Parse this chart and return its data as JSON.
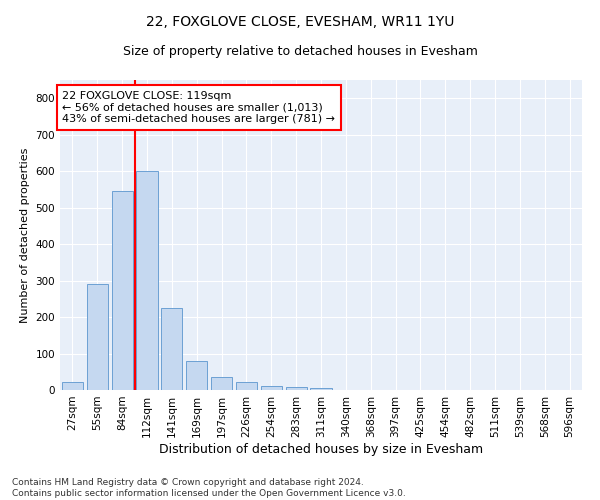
{
  "title1": "22, FOXGLOVE CLOSE, EVESHAM, WR11 1YU",
  "title2": "Size of property relative to detached houses in Evesham",
  "xlabel": "Distribution of detached houses by size in Evesham",
  "ylabel": "Number of detached properties",
  "footnote": "Contains HM Land Registry data © Crown copyright and database right 2024.\nContains public sector information licensed under the Open Government Licence v3.0.",
  "bar_labels": [
    "27sqm",
    "55sqm",
    "84sqm",
    "112sqm",
    "141sqm",
    "169sqm",
    "197sqm",
    "226sqm",
    "254sqm",
    "283sqm",
    "311sqm",
    "340sqm",
    "368sqm",
    "397sqm",
    "425sqm",
    "454sqm",
    "482sqm",
    "511sqm",
    "539sqm",
    "568sqm",
    "596sqm"
  ],
  "bar_values": [
    22,
    290,
    545,
    600,
    225,
    80,
    35,
    22,
    10,
    8,
    5,
    0,
    0,
    0,
    0,
    0,
    0,
    0,
    0,
    0,
    0
  ],
  "bar_color": "#C5D8F0",
  "bar_edge_color": "#6CA0D4",
  "vline_x": 2.5,
  "vline_color": "red",
  "annotation_line1": "22 FOXGLOVE CLOSE: 119sqm",
  "annotation_line2": "← 56% of detached houses are smaller (1,013)",
  "annotation_line3": "43% of semi-detached houses are larger (781) →",
  "ylim": [
    0,
    850
  ],
  "yticks": [
    0,
    100,
    200,
    300,
    400,
    500,
    600,
    700,
    800
  ],
  "background_color": "#E8EFF9",
  "grid_color": "#FFFFFF",
  "title1_fontsize": 10,
  "title2_fontsize": 9,
  "ylabel_fontsize": 8,
  "xlabel_fontsize": 9,
  "tick_fontsize": 7.5,
  "footnote_fontsize": 6.5,
  "ann_fontsize": 8
}
